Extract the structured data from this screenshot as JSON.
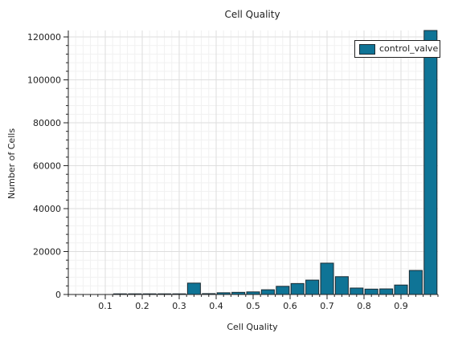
{
  "chart_data": {
    "type": "bar",
    "title": "Cell Quality",
    "xlabel": "Cell Quality",
    "ylabel": "Number of Cells",
    "xlim": [
      0,
      1
    ],
    "ylim": [
      0,
      123000
    ],
    "xticks": [
      "0.1",
      "0.2",
      "0.3",
      "0.4",
      "0.5",
      "0.6",
      "0.7",
      "0.8",
      "0.9"
    ],
    "yticks": [
      "0",
      "20000",
      "40000",
      "60000",
      "80000",
      "100000",
      "120000"
    ],
    "grid": true,
    "legend_position": "top-right",
    "bin_width": 0.04,
    "series": [
      {
        "name": "control_valve",
        "color": "#0f7496",
        "x": [
          0.02,
          0.06,
          0.1,
          0.14,
          0.18,
          0.22,
          0.26,
          0.3,
          0.34,
          0.38,
          0.42,
          0.46,
          0.5,
          0.54,
          0.58,
          0.62,
          0.66,
          0.7,
          0.74,
          0.78,
          0.82,
          0.86,
          0.9,
          0.94,
          0.98
        ],
        "values": [
          0,
          0,
          0,
          300,
          300,
          300,
          300,
          300,
          5300,
          400,
          800,
          1000,
          1200,
          2200,
          3800,
          5100,
          6700,
          14600,
          8300,
          3000,
          2500,
          2600,
          4400,
          11200,
          123000
        ]
      }
    ]
  }
}
